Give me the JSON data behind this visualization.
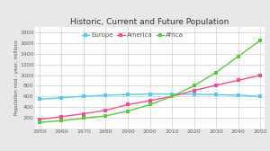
{
  "title": "Historic, Current and Future Population",
  "ylabel": "Population mid - year, millions",
  "years": [
    1950,
    1960,
    1970,
    1980,
    1990,
    2000,
    2010,
    2020,
    2030,
    2040,
    2050
  ],
  "europe": [
    547,
    575,
    603,
    622,
    636,
    646,
    645,
    641,
    632,
    622,
    598
  ],
  "america": [
    168,
    220,
    274,
    339,
    445,
    520,
    600,
    710,
    810,
    900,
    1000
  ],
  "africa": [
    112,
    145,
    191,
    234,
    325,
    445,
    600,
    800,
    1050,
    1350,
    1650
  ],
  "europe_color": "#55c8f0",
  "america_color": "#f05090",
  "africa_color": "#60c840",
  "background_color": "#e8e8e8",
  "plot_bg_color": "#ffffff",
  "grid_color": "#d0d0d0",
  "ylim": [
    0,
    1900
  ],
  "xlim": [
    1948,
    2052
  ],
  "yticks": [
    200,
    400,
    600,
    800,
    1000,
    1200,
    1400,
    1600,
    1800
  ],
  "xticks": [
    1950,
    1960,
    1970,
    1980,
    1990,
    2000,
    2010,
    2020,
    2030,
    2040,
    2050
  ],
  "title_fontsize": 6.5,
  "label_fontsize": 4.0,
  "tick_fontsize": 4.5,
  "legend_fontsize": 5.0,
  "marker_size": 2.5,
  "line_width": 1.0
}
